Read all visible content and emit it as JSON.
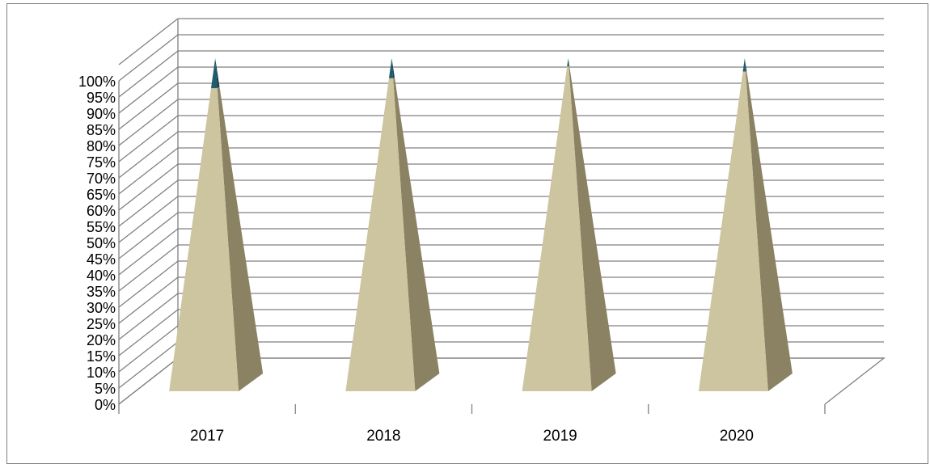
{
  "chart_data": {
    "type": "bar",
    "style": "3d-stacked-pyramid-100-percent",
    "categories": [
      "2017",
      "2018",
      "2019",
      "2020"
    ],
    "series": [
      {
        "values": [
          91,
          94,
          97.5,
          96
        ],
        "color": "#cdc5a0",
        "shade_color": "#8a8262"
      },
      {
        "values": [
          9,
          6,
          2.5,
          4
        ],
        "color": "#1f5c6e",
        "shade_color": "#163f4b"
      }
    ],
    "y_ticks": [
      "0%",
      "5%",
      "10%",
      "15%",
      "20%",
      "25%",
      "30%",
      "35%",
      "40%",
      "45%",
      "50%",
      "55%",
      "60%",
      "65%",
      "70%",
      "75%",
      "80%",
      "85%",
      "90%",
      "95%",
      "100%"
    ],
    "ylim": [
      0,
      100
    ],
    "grid": true,
    "legend": "none",
    "title": "",
    "xlabel": "",
    "ylabel": ""
  }
}
